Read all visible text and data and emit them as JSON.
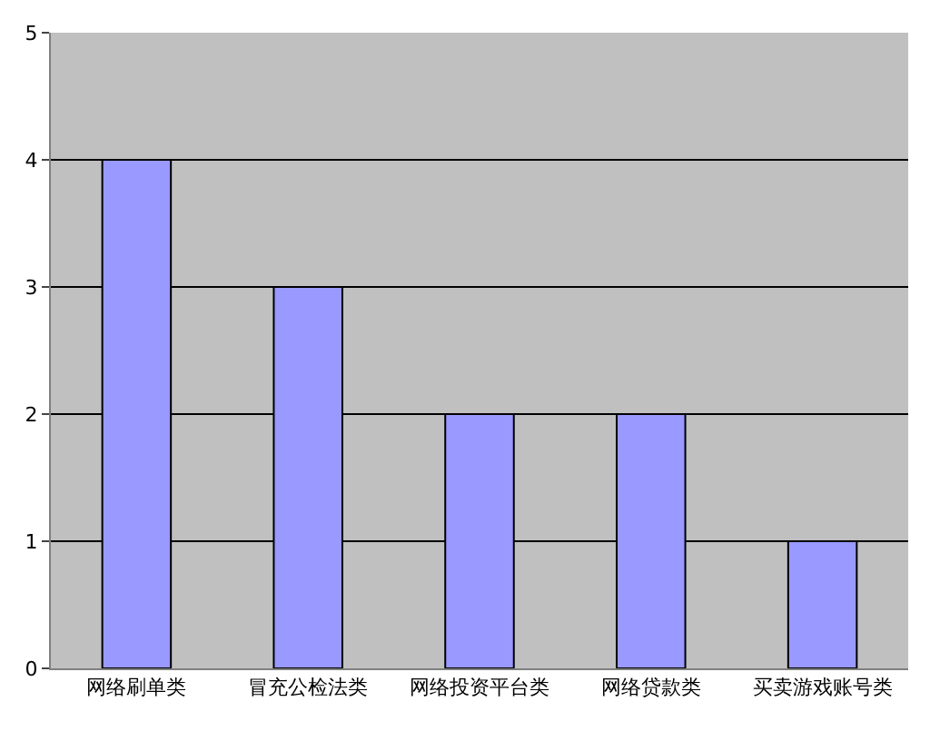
{
  "chart_data": {
    "type": "bar",
    "categories": [
      "网络刷单类",
      "冒充公检法类",
      "网络投资平台类",
      "网络贷款类",
      "买卖游戏账号类"
    ],
    "values": [
      4,
      3,
      2,
      2,
      1
    ],
    "color": "#9999ff",
    "ylim": [
      0,
      5
    ],
    "yticks": [
      0,
      1,
      2,
      3,
      4,
      5
    ],
    "grid": "y"
  }
}
